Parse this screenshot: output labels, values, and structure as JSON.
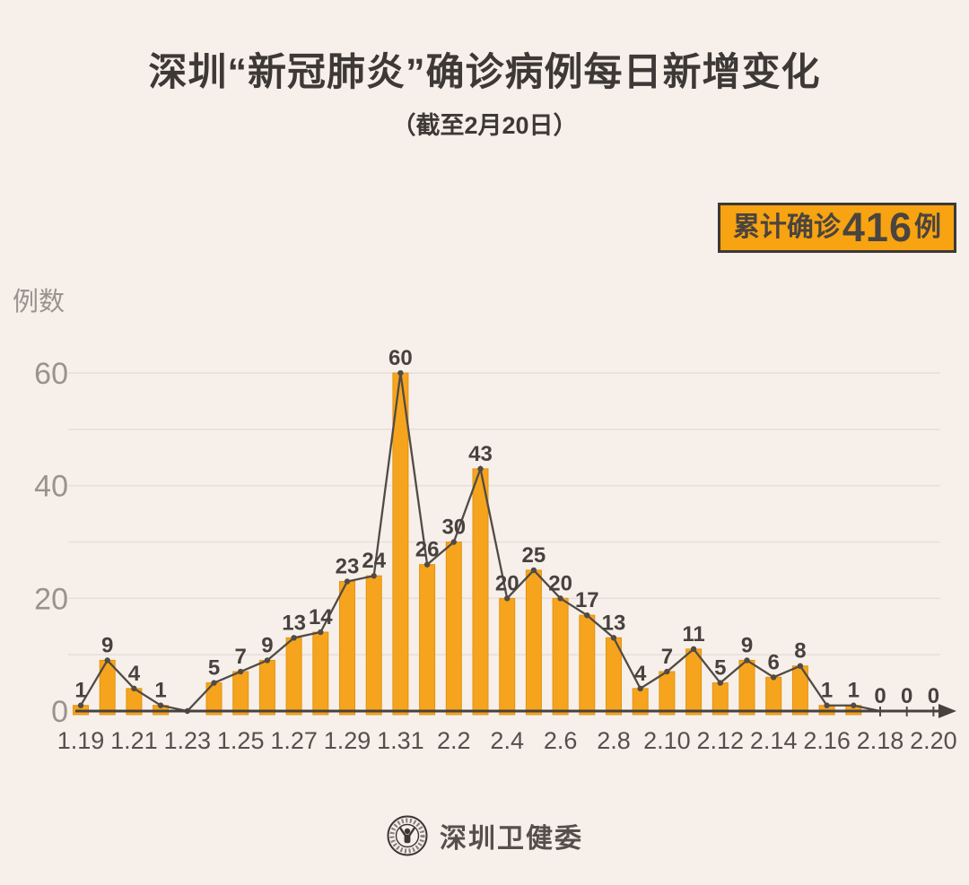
{
  "page": {
    "background": "#f7efea"
  },
  "header": {
    "title": "深圳“新冠肺炎”确诊病例每日新增变化",
    "subtitle": "（截至2月20日）",
    "badge": {
      "prefix": "累计确诊",
      "count": "416",
      "suffix": "例",
      "background": "#f7a312",
      "border_color": "#3d3936",
      "text_color": "#4a443f"
    }
  },
  "chart_data": {
    "type": "bar",
    "overlay": "line",
    "title": "深圳“新冠肺炎”确诊病例每日新增变化（截至2月20日）",
    "xlabel": "",
    "ylabel": "例数",
    "categories": [
      "1.19",
      "1.20",
      "1.21",
      "1.22",
      "1.23",
      "1.24",
      "1.25",
      "1.26",
      "1.27",
      "1.28",
      "1.29",
      "1.30",
      "1.31",
      "2.1",
      "2.2",
      "2.3",
      "2.4",
      "2.5",
      "2.6",
      "2.7",
      "2.8",
      "2.9",
      "2.10",
      "2.11",
      "2.12",
      "2.13",
      "2.14",
      "2.15",
      "2.16",
      "2.17",
      "2.18",
      "2.19",
      "2.20"
    ],
    "values": [
      1,
      9,
      4,
      1,
      0,
      5,
      7,
      9,
      13,
      14,
      23,
      24,
      60,
      26,
      30,
      43,
      20,
      25,
      20,
      17,
      13,
      4,
      7,
      11,
      5,
      9,
      6,
      8,
      1,
      1,
      0,
      0,
      0
    ],
    "total": 416,
    "x_axis_tick_labels": [
      "1.19",
      "1.21",
      "1.23",
      "1.25",
      "1.27",
      "1.29",
      "1.31",
      "2.2",
      "2.4",
      "2.6",
      "2.8",
      "2.10",
      "2.12",
      "2.14",
      "2.16",
      "2.18",
      "2.20"
    ],
    "yticks": [
      0,
      20,
      40,
      60
    ],
    "ylim": [
      0,
      64
    ],
    "grid": "horizontal every 10, no vertical grid",
    "legend": "none",
    "value_labels_shown": true,
    "value_label_hidden_for": [
      "1.23"
    ],
    "zero_tick_marks_for": [
      "2.18",
      "2.19",
      "2.20"
    ],
    "colors": {
      "bar": "#f6a41d",
      "bar_edge": "#e2940e",
      "line": "#514b46",
      "marker": "#514b46",
      "grid": "#e9dfda",
      "axis": "#48423e",
      "ytick_label": "#9a928d",
      "ylabel": "#9a928d",
      "x_label": "#55504b",
      "value_label": "#48423e"
    }
  },
  "footer": {
    "logo_icon": "shenzhen-health-commission-emblem",
    "text": "深圳卫健委"
  }
}
